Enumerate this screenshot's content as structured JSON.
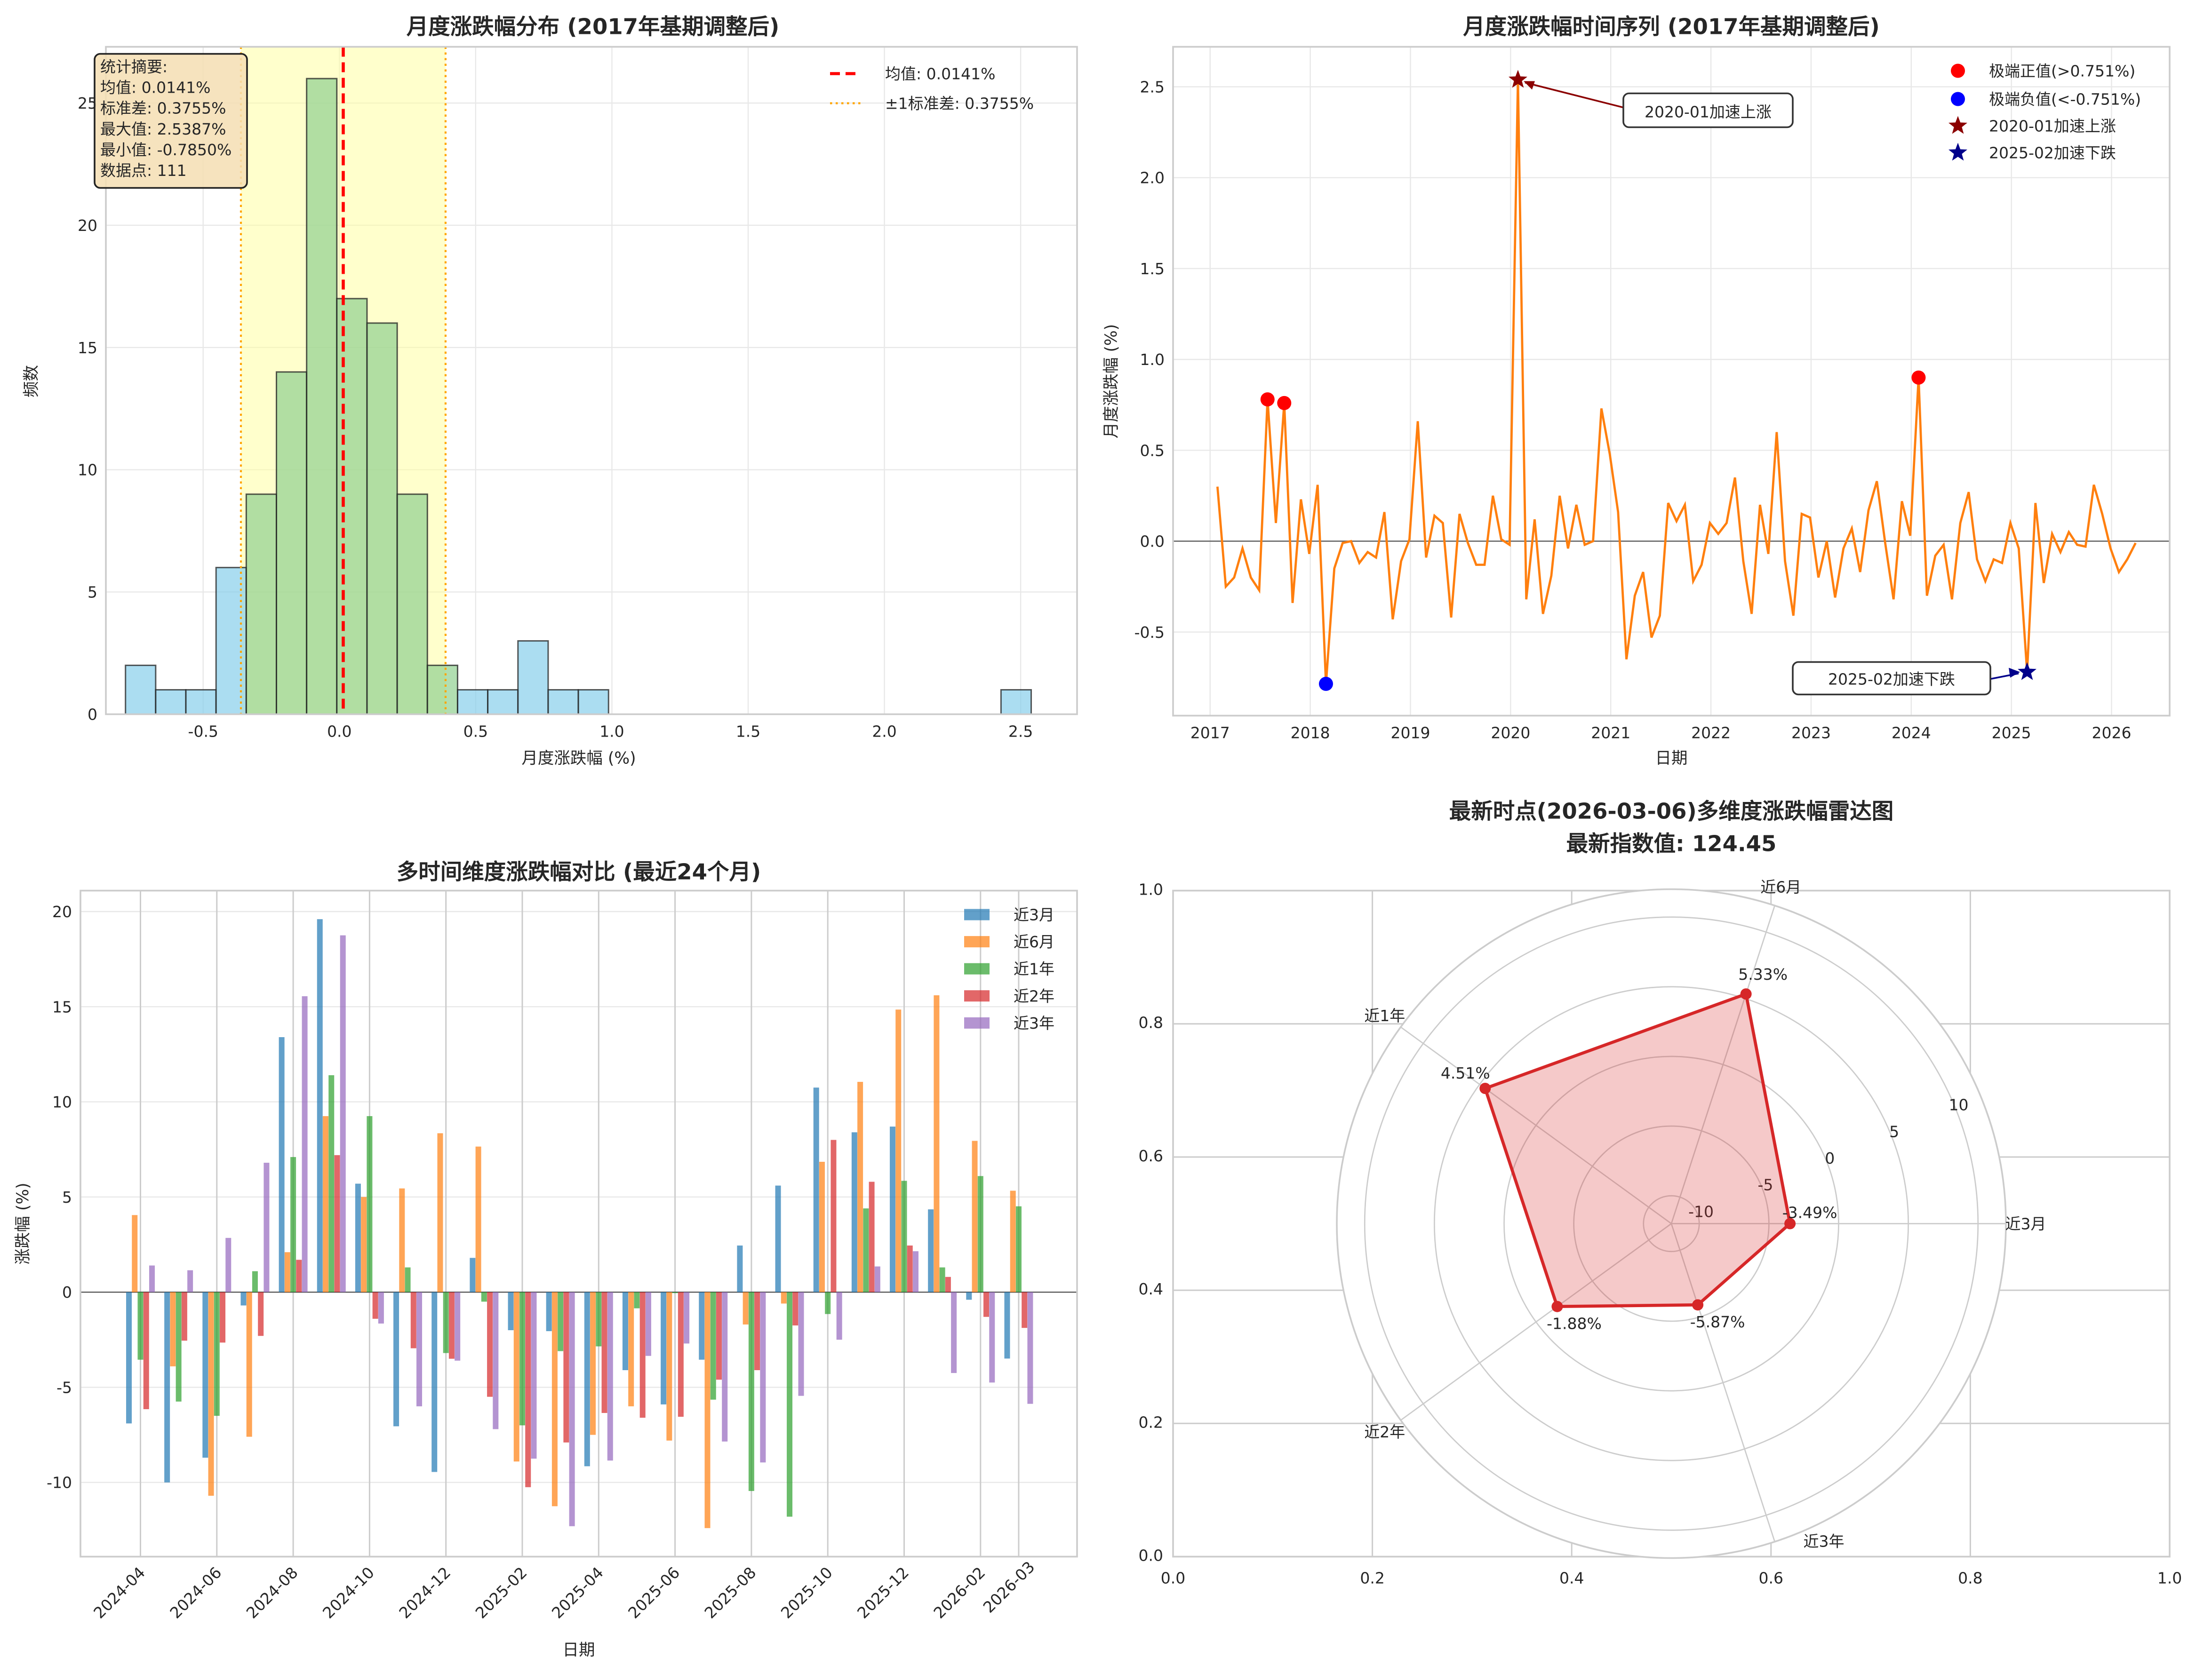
{
  "chart_data": [
    {
      "type": "bar",
      "subtype": "histogram",
      "title": "月度涨跌幅分布 (2017年基期调整后)",
      "xlabel": "月度涨跌幅 (%)",
      "ylabel": "频数",
      "xlim": [
        -0.857,
        2.707
      ],
      "ylim": [
        0,
        27.3
      ],
      "xticks": [
        -0.5,
        0.0,
        0.5,
        1.0,
        1.5,
        2.0,
        2.5
      ],
      "xtick_labels": [
        "-0.5",
        "0.0",
        "0.5",
        "1.0",
        "1.5",
        "2.0",
        "2.5"
      ],
      "yticks": [
        0,
        5,
        10,
        15,
        20,
        25
      ],
      "bin_start": -0.785,
      "bin_width": 0.11079,
      "counts": [
        2,
        1,
        1,
        6,
        9,
        14,
        26,
        17,
        16,
        9,
        2,
        1,
        1,
        3,
        1,
        1,
        0,
        0,
        0,
        0,
        0,
        0,
        0,
        0,
        0,
        0,
        0,
        0,
        0,
        1
      ],
      "highlight_bins": [
        4,
        5,
        6,
        7,
        8,
        9,
        10
      ],
      "mean": 0.0141,
      "std": 0.3755,
      "colors": {
        "normal": "#87ceeb",
        "highlight": "#90d090",
        "band": "#ffff99",
        "mean": "#ff0000",
        "std": "#ffa500"
      },
      "legend": [
        "均值: 0.0141%",
        "±1标准差: 0.3755%"
      ],
      "legend_position": "top-right",
      "stats_box": [
        "统计摘要:",
        "均值: 0.0141%",
        "标准差: 0.3755%",
        "最大值: 2.5387%",
        "最小值: -0.7850%",
        "数据点: 111"
      ]
    },
    {
      "type": "line",
      "title": "月度涨跌幅时间序列 (2017年基期调整后)",
      "xlabel": "日期",
      "ylabel": "月度涨跌幅 (%)",
      "xlim": [
        2016.63,
        2026.58
      ],
      "ylim": [
        -0.96,
        2.72
      ],
      "xticks": [
        2017,
        2018,
        2019,
        2020,
        2021,
        2022,
        2023,
        2024,
        2025,
        2026
      ],
      "yticks": [
        -0.5,
        0.0,
        0.5,
        1.0,
        1.5,
        2.0,
        2.5
      ],
      "ytick_labels": [
        "-0.5",
        "0.0",
        "0.5",
        "1.0",
        "1.5",
        "2.0",
        "2.5"
      ],
      "start_month": "2017-01",
      "values": [
        0.3,
        -0.25,
        -0.2,
        -0.04,
        -0.2,
        -0.27,
        0.78,
        0.1,
        0.76,
        -0.34,
        0.23,
        -0.07,
        0.31,
        -0.785,
        -0.15,
        -0.01,
        0.0,
        -0.12,
        -0.06,
        -0.09,
        0.16,
        -0.43,
        -0.11,
        0.01,
        0.66,
        -0.09,
        0.14,
        0.1,
        -0.42,
        0.15,
        -0.01,
        -0.13,
        -0.13,
        0.25,
        0.01,
        -0.02,
        2.5387,
        -0.32,
        0.12,
        -0.4,
        -0.19,
        0.25,
        -0.04,
        0.2,
        -0.02,
        0.0,
        0.73,
        0.48,
        0.16,
        -0.65,
        -0.3,
        -0.17,
        -0.53,
        -0.41,
        0.21,
        0.11,
        0.2,
        -0.22,
        -0.13,
        0.1,
        0.04,
        0.1,
        0.35,
        -0.11,
        -0.4,
        0.2,
        -0.07,
        0.6,
        -0.11,
        -0.41,
        0.15,
        0.13,
        -0.2,
        0.0,
        -0.31,
        -0.04,
        0.07,
        -0.17,
        0.17,
        0.33,
        -0.01,
        -0.32,
        0.22,
        0.03,
        0.9,
        -0.3,
        -0.08,
        -0.02,
        -0.32,
        0.1,
        0.27,
        -0.1,
        -0.22,
        -0.1,
        -0.12,
        0.1,
        -0.04,
        -0.72,
        0.21,
        -0.23,
        0.04,
        -0.06,
        0.05,
        -0.02,
        -0.03,
        0.31,
        0.15,
        -0.04,
        -0.17,
        -0.1,
        -0.01
      ],
      "extreme_positive_idx": [
        6,
        8,
        84
      ],
      "extreme_negative_idx": [
        13
      ],
      "accel_up_idx": 36,
      "accel_down_idx": 97,
      "colors": {
        "line": "#ff7f0e",
        "pos": "#ff0000",
        "neg": "#0000ff",
        "up": "#8b0000",
        "down": "#00008b"
      },
      "legend": [
        "极端正值(>0.751%)",
        "极端负值(<-0.751%)",
        "2020-01加速上涨",
        "2025-02加速下跌"
      ],
      "legend_position": "top-right",
      "annotations": [
        "2020-01加速上涨",
        "2025-02加速下跌"
      ]
    },
    {
      "type": "bar",
      "title": "多时间维度涨跌幅对比 (最近24个月)",
      "xlabel": "日期",
      "ylabel": "涨跌幅 (%)",
      "ylim": [
        -13.9,
        21.1
      ],
      "yticks": [
        -10,
        -5,
        0,
        5,
        10,
        15,
        20
      ],
      "categories": [
        "2024-04",
        "2024-05",
        "2024-06",
        "2024-07",
        "2024-08",
        "2024-09",
        "2024-10",
        "2024-11",
        "2024-12",
        "2025-01",
        "2025-02",
        "2025-03",
        "2025-04",
        "2025-05",
        "2025-06",
        "2025-07",
        "2025-08",
        "2025-09",
        "2025-10",
        "2025-11",
        "2025-12",
        "2026-01",
        "2026-02",
        "2026-03"
      ],
      "xtick_idx": [
        0,
        2,
        4,
        6,
        8,
        10,
        12,
        14,
        16,
        18,
        20,
        22,
        23
      ],
      "xtick_labels": [
        "2024-04",
        "2024-06",
        "2024-08",
        "2024-10",
        "2024-12",
        "2025-02",
        "2025-04",
        "2025-06",
        "2025-08",
        "2025-10",
        "2025-12",
        "2026-02",
        "2026-03"
      ],
      "series": [
        {
          "name": "近3月",
          "color": "#1f77b4",
          "values": [
            -6.9,
            -10.0,
            -8.7,
            -0.7,
            13.4,
            19.6,
            5.7,
            -7.05,
            -9.45,
            1.8,
            -2.0,
            -2.05,
            -9.15,
            -4.1,
            -5.9,
            -3.55,
            2.45,
            5.6,
            10.75,
            8.4,
            8.7,
            4.35,
            -0.4,
            -3.49
          ]
        },
        {
          "name": "近6月",
          "color": "#ff7f0e",
          "values": [
            4.05,
            -3.9,
            -10.7,
            -7.6,
            2.1,
            9.25,
            5.0,
            5.45,
            8.35,
            7.65,
            -8.9,
            -11.25,
            -7.5,
            -6.0,
            -7.8,
            -12.4,
            -1.7,
            -0.6,
            6.85,
            11.05,
            14.85,
            15.6,
            7.95,
            5.33
          ]
        },
        {
          "name": "近1年",
          "color": "#2ca02c",
          "values": [
            -3.55,
            -5.75,
            -6.5,
            1.1,
            7.1,
            11.4,
            9.25,
            1.3,
            -3.2,
            -0.5,
            -7.0,
            -3.1,
            -2.85,
            -0.85,
            -0.05,
            -5.65,
            -10.45,
            -11.8,
            -1.15,
            4.4,
            5.85,
            1.3,
            6.1,
            4.51
          ]
        },
        {
          "name": "近2年",
          "color": "#d62728",
          "values": [
            -6.15,
            -2.55,
            -2.65,
            -2.3,
            1.7,
            7.2,
            -1.4,
            -2.95,
            -3.5,
            -5.5,
            -10.25,
            -7.9,
            -6.35,
            -6.6,
            -6.55,
            -4.6,
            -4.1,
            -1.75,
            8.0,
            5.8,
            2.45,
            0.8,
            -1.3,
            -1.88
          ]
        },
        {
          "name": "近3年",
          "color": "#9467bd",
          "values": [
            1.4,
            1.15,
            2.85,
            6.8,
            15.55,
            18.75,
            -1.65,
            -6.0,
            -3.6,
            -7.2,
            -8.75,
            -12.3,
            -8.85,
            -3.35,
            -2.7,
            -7.85,
            -8.95,
            -5.45,
            -2.5,
            1.35,
            2.15,
            -4.25,
            -4.75,
            -5.87
          ]
        }
      ],
      "legend_position": "top-right"
    },
    {
      "type": "radar",
      "title": "最新时点(2026-03-06)多维度涨跌幅雷达图",
      "subtitle": "最新指数值: 124.45",
      "axes": [
        "近3月",
        "近6月",
        "近1年",
        "近2年",
        "近3年"
      ],
      "values": [
        -3.49,
        5.33,
        4.51,
        -1.88,
        -5.87
      ],
      "value_labels": [
        "-3.49%",
        "5.33%",
        "4.51%",
        "-1.88%",
        "-5.87%"
      ],
      "rlim": [
        -12,
        12
      ],
      "rticks": [
        -10,
        -5,
        0,
        5,
        10
      ],
      "rtick_labels": [
        "-10",
        "-5",
        "0",
        "5",
        "10"
      ],
      "cartesian_ticks": [
        "0.0",
        "0.2",
        "0.4",
        "0.6",
        "0.8",
        "1.0"
      ],
      "color": "#d62728"
    }
  ]
}
